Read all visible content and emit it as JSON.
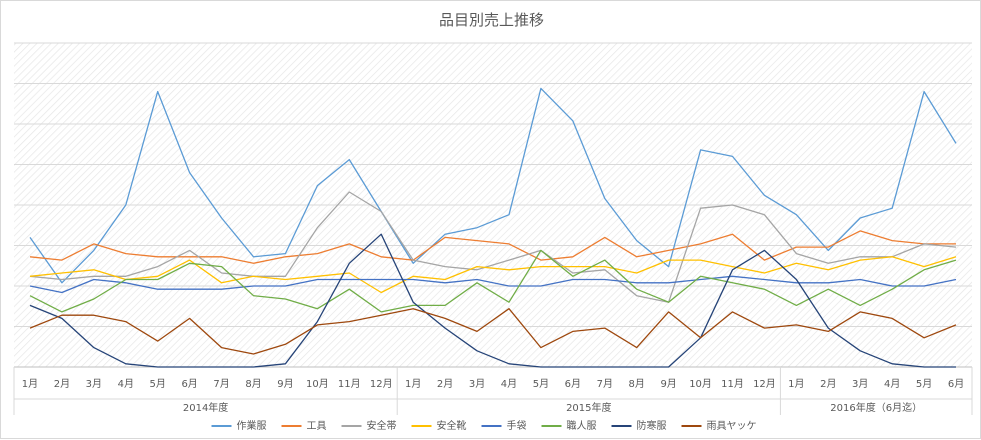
{
  "chart_data": {
    "type": "line",
    "title": "品目別売上推移",
    "x_ticks": [
      "1月",
      "2月",
      "3月",
      "4月",
      "5月",
      "6月",
      "7月",
      "8月",
      "9月",
      "10月",
      "11月",
      "12月",
      "1月",
      "2月",
      "3月",
      "4月",
      "5月",
      "6月",
      "7月",
      "8月",
      "9月",
      "10月",
      "11月",
      "12月",
      "1月",
      "2月",
      "3月",
      "4月",
      "5月",
      "6月"
    ],
    "x": [
      "2014-01",
      "2014-02",
      "2014-03",
      "2014-04",
      "2014-05",
      "2014-06",
      "2014-07",
      "2014-08",
      "2014-09",
      "2014-10",
      "2014-11",
      "2014-12",
      "2015-01",
      "2015-02",
      "2015-03",
      "2015-04",
      "2015-05",
      "2015-06",
      "2015-07",
      "2015-08",
      "2015-09",
      "2015-10",
      "2015-11",
      "2015-12",
      "2016-01",
      "2016-02",
      "2016-03",
      "2016-04",
      "2016-05",
      "2016-06"
    ],
    "groups": [
      {
        "label": "2014年度",
        "count": 12
      },
      {
        "label": "2015年度",
        "count": 12
      },
      {
        "label": "2016年度（6月迄）",
        "count": 6
      }
    ],
    "ylim": [
      0,
      100
    ],
    "y_axis_labels": false,
    "grid": true,
    "legend_position": "bottom",
    "series": [
      {
        "name": "作業服",
        "color": "#5b9bd5",
        "values": [
          40,
          26,
          36,
          50,
          85,
          60,
          46,
          34,
          35,
          56,
          64,
          48,
          32,
          41,
          43,
          47,
          86,
          76,
          52,
          39,
          31,
          67,
          65,
          53,
          47,
          36,
          46,
          49,
          85,
          69
        ]
      },
      {
        "name": "工具",
        "color": "#ed7d31",
        "values": [
          34,
          33,
          38,
          35,
          34,
          34,
          34,
          32,
          34,
          35,
          38,
          34,
          33,
          40,
          39,
          38,
          33,
          34,
          40,
          34,
          36,
          38,
          41,
          33,
          37,
          37,
          42,
          39,
          38,
          38
        ]
      },
      {
        "name": "安全帯",
        "color": "#a5a5a5",
        "values": [
          28,
          27,
          28,
          28,
          31,
          36,
          29,
          28,
          28,
          43,
          54,
          48,
          33,
          31,
          30,
          33,
          36,
          29,
          30,
          22,
          20,
          49,
          50,
          47,
          35,
          32,
          34,
          34,
          38,
          37
        ]
      },
      {
        "name": "安全靴",
        "color": "#ffc000",
        "values": [
          28,
          29,
          30,
          27,
          28,
          33,
          26,
          28,
          27,
          28,
          29,
          23,
          28,
          27,
          31,
          30,
          31,
          31,
          31,
          29,
          33,
          33,
          31,
          29,
          32,
          30,
          33,
          34,
          31,
          34
        ]
      },
      {
        "name": "手袋",
        "color": "#4472c4",
        "values": [
          25,
          23,
          27,
          26,
          24,
          24,
          24,
          25,
          25,
          27,
          27,
          27,
          27,
          26,
          27,
          25,
          25,
          27,
          27,
          26,
          26,
          27,
          28,
          27,
          26,
          26,
          27,
          25,
          25,
          27
        ]
      },
      {
        "name": "職人服",
        "color": "#70ad47",
        "values": [
          22,
          17,
          21,
          27,
          27,
          32,
          31,
          22,
          21,
          18,
          24,
          17,
          19,
          19,
          26,
          20,
          36,
          28,
          33,
          24,
          20,
          28,
          26,
          24,
          19,
          24,
          19,
          24,
          30,
          33
        ]
      },
      {
        "name": "防寒服",
        "color": "#264478",
        "values": [
          19,
          15,
          6,
          1,
          0,
          0,
          0,
          0,
          1,
          14,
          32,
          41,
          20,
          12,
          5,
          1,
          0,
          0,
          0,
          0,
          0,
          9,
          30,
          36,
          27,
          12,
          5,
          1,
          0,
          0
        ]
      },
      {
        "name": "雨具ヤッケ",
        "color": "#9e480e",
        "values": [
          12,
          16,
          16,
          14,
          8,
          15,
          6,
          4,
          7,
          13,
          14,
          16,
          18,
          15,
          11,
          18,
          6,
          11,
          12,
          6,
          17,
          9,
          17,
          12,
          13,
          11,
          17,
          15,
          9,
          13
        ]
      }
    ]
  }
}
